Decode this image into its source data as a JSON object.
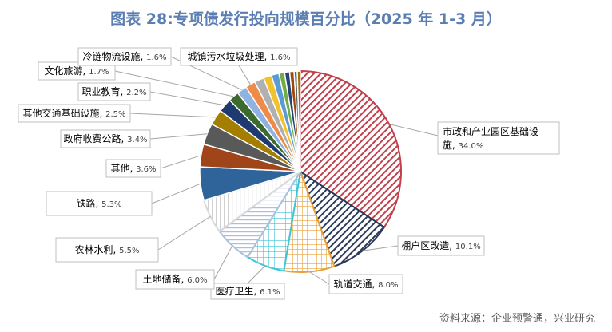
{
  "colors": {
    "title": "#5b7eb3",
    "source": "#595959"
  },
  "chart_data": {
    "type": "pie",
    "title": "图表 28:专项债发行投向规模百分比（2025 年 1-3 月）",
    "source": "资料来源：企业预警通，兴业研究",
    "slices": [
      {
        "name": "市政和产业园区基础设施",
        "value": 34.0,
        "label_pct": "34.0%",
        "color": "#c0404c",
        "pattern": "diag-red"
      },
      {
        "name": "棚户区改造",
        "value": 10.1,
        "label_pct": "10.1%",
        "color": "#2b3a5a",
        "pattern": "diag-navy"
      },
      {
        "name": "轨道交通",
        "value": 8.0,
        "label_pct": "8.0%",
        "color": "#e8a23a",
        "pattern": "grid-orange"
      },
      {
        "name": "医疗卫生",
        "value": 6.1,
        "label_pct": "6.1%",
        "color": "#3fc5d6",
        "pattern": "grid-cyan"
      },
      {
        "name": "土地储备",
        "value": 6.0,
        "label_pct": "6.0%",
        "color": "#a9c1dc",
        "pattern": "horiz-blue"
      },
      {
        "name": "农林水利",
        "value": 5.5,
        "label_pct": "5.5%",
        "color": "#d9d9d9",
        "pattern": "vert-gray"
      },
      {
        "name": "铁路",
        "value": 5.3,
        "label_pct": "5.3%",
        "color": "#2e6499",
        "pattern": "solid"
      },
      {
        "name": "其他",
        "value": 3.6,
        "label_pct": "3.6%",
        "color": "#a0441a",
        "pattern": "solid"
      },
      {
        "name": "政府收费公路",
        "value": 3.4,
        "label_pct": "3.4%",
        "color": "#595959",
        "pattern": "solid"
      },
      {
        "name": "其他交通基础设施",
        "value": 2.5,
        "label_pct": "2.5%",
        "color": "#a47e00",
        "pattern": "solid"
      },
      {
        "name": "职业教育",
        "value": 2.2,
        "label_pct": "2.2%",
        "color": "#1f3a6e",
        "pattern": "solid"
      },
      {
        "name": "文化旅游",
        "value": 1.7,
        "label_pct": "1.7%",
        "color": "#3d6b2e",
        "pattern": "solid"
      },
      {
        "name": "冷链物流设施",
        "value": 1.6,
        "label_pct": "1.6%",
        "color": "#8fb3e0",
        "pattern": "solid"
      },
      {
        "name": "城镇污水垃圾处理",
        "value": 1.6,
        "label_pct": "1.6%",
        "color": "#ee8a4a",
        "pattern": "solid"
      },
      {
        "name": "",
        "value": 1.5,
        "label_pct": "",
        "color": "#b0b0b0",
        "pattern": "solid"
      },
      {
        "name": "",
        "value": 1.3,
        "label_pct": "",
        "color": "#f2c12e",
        "pattern": "solid"
      },
      {
        "name": "",
        "value": 1.2,
        "label_pct": "",
        "color": "#5b9bd5",
        "pattern": "solid"
      },
      {
        "name": "",
        "value": 0.9,
        "label_pct": "",
        "color": "#70ad47",
        "pattern": "solid"
      },
      {
        "name": "",
        "value": 0.8,
        "label_pct": "",
        "color": "#264478",
        "pattern": "solid"
      },
      {
        "name": "",
        "value": 0.7,
        "label_pct": "",
        "color": "#9e480e",
        "pattern": "solid"
      },
      {
        "name": "",
        "value": 0.5,
        "label_pct": "",
        "color": "#636363",
        "pattern": "solid"
      },
      {
        "name": "",
        "value": 0.5,
        "label_pct": "",
        "color": "#997300",
        "pattern": "solid"
      }
    ]
  }
}
